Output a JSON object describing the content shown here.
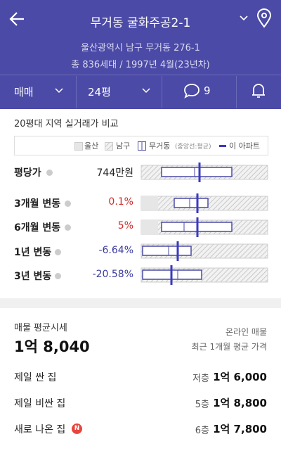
{
  "header": {
    "title": "무거동 굴화주공2-1",
    "address": "울산광역시 남구 무거동 276-1",
    "summary": "총 836세대 / 1997년 4월(23년차)"
  },
  "tabs": {
    "trade": "매매",
    "size": "24평",
    "comments": "9"
  },
  "compare": {
    "title": "20평대 지역 실거래가 비교",
    "legend": [
      "울산",
      "남구",
      "무거동",
      "(중앙선:평균)",
      "이 아파트"
    ],
    "rows": [
      {
        "label": "평당가",
        "value": "744만원"
      },
      {
        "label": "3개월 변동",
        "value": "0.1%"
      },
      {
        "label": "6개월 변동",
        "value": "5%"
      },
      {
        "label": "1년 변동",
        "value": "-6.64%"
      },
      {
        "label": "3년 변동",
        "value": "-20.58%"
      }
    ]
  },
  "listing": {
    "title": "매물 평균시세",
    "price": "1억 8,040",
    "source": "온라인 매물",
    "period": "최근 1개월 평균 가격",
    "items": [
      {
        "label": "제일 싼 집",
        "floor": "저층",
        "price": "1억 6,000"
      },
      {
        "label": "제일 비싼 집",
        "floor": "5층",
        "price": "1억 8,800"
      },
      {
        "label": "새로 나온 집",
        "badge": "N",
        "floor": "6층",
        "price": "1억 7,800"
      }
    ]
  }
}
